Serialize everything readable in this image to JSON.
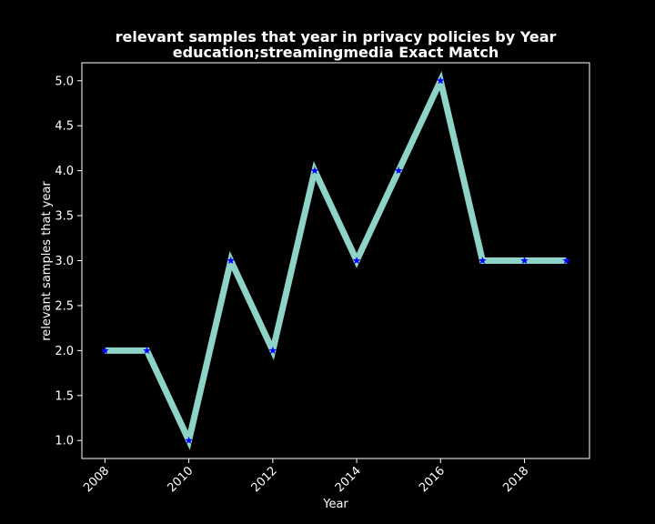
{
  "chart_data": {
    "type": "line",
    "title": "relevant samples that year in privacy policies by Year",
    "subtitle": "education;streamingmedia Exact Match",
    "xlabel": "Year",
    "ylabel": "relevant samples that year",
    "x": [
      2008,
      2009,
      2010,
      2011,
      2012,
      2013,
      2014,
      2015,
      2016,
      2017,
      2018,
      2019
    ],
    "series": [
      {
        "values": [
          2,
          2,
          1,
          3,
          2,
          4,
          3,
          4,
          5,
          3,
          3,
          3
        ],
        "line_color": "#8dd3c7",
        "marker": "star",
        "marker_color": "#0000ff"
      }
    ],
    "xlim": [
      2007.45,
      2019.55
    ],
    "ylim": [
      0.8,
      5.2
    ],
    "xticks": [
      2008,
      2010,
      2012,
      2014,
      2016,
      2018
    ],
    "yticks": [
      1.0,
      1.5,
      2.0,
      2.5,
      3.0,
      3.5,
      4.0,
      4.5,
      5.0
    ],
    "ytick_labels": [
      "1.0",
      "1.5",
      "2.0",
      "2.5",
      "3.0",
      "3.5",
      "4.0",
      "4.5",
      "5.0"
    ],
    "grid": false,
    "background": "#000000",
    "foreground": "#ffffff"
  }
}
